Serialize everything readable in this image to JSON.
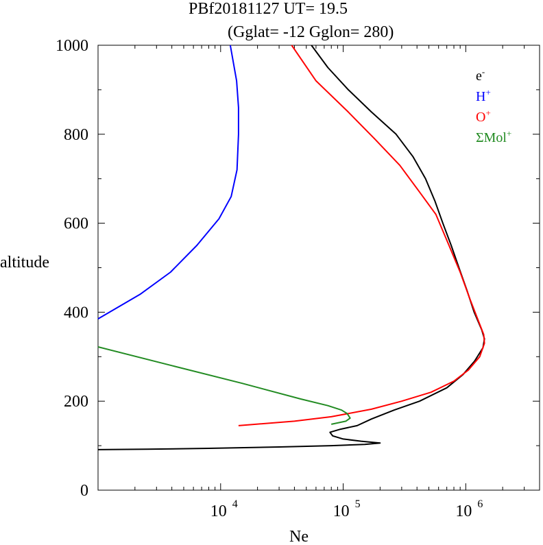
{
  "chart_data": {
    "type": "line",
    "title": "PBf20181127   UT=  19.5",
    "subtitle": "(Gglat= -12   Gglon=  280)",
    "xlabel": "Ne",
    "ylabel": "altitude",
    "x_scale": "log",
    "xlim": [
      1000,
      4000000
    ],
    "ylim": [
      0,
      1000
    ],
    "y_ticks": [
      0,
      200,
      400,
      600,
      800,
      1000
    ],
    "x_ticks": [
      {
        "value": 10000,
        "base": "10",
        "exp": "4"
      },
      {
        "value": 100000,
        "base": "10",
        "exp": "5"
      },
      {
        "value": 1000000,
        "base": "10",
        "exp": "6"
      }
    ],
    "grid": false,
    "legend_position": "top-right",
    "series": [
      {
        "name_base": "e",
        "name_sup": "-",
        "color": "#000000",
        "points": [
          [
            55000,
            1000
          ],
          [
            75000,
            950
          ],
          [
            110000,
            900
          ],
          [
            170000,
            850
          ],
          [
            270000,
            800
          ],
          [
            370000,
            750
          ],
          [
            470000,
            700
          ],
          [
            560000,
            650
          ],
          [
            650000,
            600
          ],
          [
            760000,
            550
          ],
          [
            880000,
            500
          ],
          [
            1020000,
            450
          ],
          [
            1170000,
            400
          ],
          [
            1350000,
            360
          ],
          [
            1420000,
            340
          ],
          [
            1380000,
            320
          ],
          [
            1180000,
            290
          ],
          [
            950000,
            260
          ],
          [
            700000,
            230
          ],
          [
            420000,
            200
          ],
          [
            260000,
            180
          ],
          [
            170000,
            160
          ],
          [
            130000,
            145
          ],
          [
            95000,
            137
          ],
          [
            78000,
            130
          ],
          [
            82000,
            122
          ],
          [
            100000,
            115
          ],
          [
            140000,
            110
          ],
          [
            200000,
            106
          ],
          [
            150000,
            103
          ],
          [
            80000,
            100
          ],
          [
            30000,
            97
          ],
          [
            8000,
            94
          ],
          [
            2500,
            92
          ],
          [
            1000,
            91
          ]
        ]
      },
      {
        "name_base": "H",
        "name_sup": "+",
        "color": "#0000ff",
        "points": [
          [
            12000,
            1000
          ],
          [
            13500,
            920
          ],
          [
            14000,
            860
          ],
          [
            14000,
            800
          ],
          [
            13600,
            720
          ],
          [
            12200,
            660
          ],
          [
            9700,
            610
          ],
          [
            6400,
            550
          ],
          [
            3900,
            490
          ],
          [
            2200,
            440
          ],
          [
            1000,
            385
          ]
        ]
      },
      {
        "name_base": "O",
        "name_sup": "+",
        "color": "#ff0000",
        "points": [
          [
            38000,
            1000
          ],
          [
            60000,
            920
          ],
          [
            110000,
            850
          ],
          [
            180000,
            790
          ],
          [
            290000,
            730
          ],
          [
            420000,
            670
          ],
          [
            570000,
            620
          ],
          [
            730000,
            550
          ],
          [
            900000,
            490
          ],
          [
            1080000,
            430
          ],
          [
            1270000,
            380
          ],
          [
            1400000,
            350
          ],
          [
            1420000,
            330
          ],
          [
            1300000,
            300
          ],
          [
            1050000,
            270
          ],
          [
            800000,
            245
          ],
          [
            520000,
            220
          ],
          [
            300000,
            200
          ],
          [
            170000,
            182
          ],
          [
            80000,
            165
          ],
          [
            40000,
            155
          ],
          [
            14000,
            145
          ]
        ]
      },
      {
        "name_base": "ΣMol",
        "name_sup": "+",
        "color": "#228b22",
        "points": [
          [
            1000,
            322
          ],
          [
            4000,
            280
          ],
          [
            15000,
            240
          ],
          [
            45000,
            205
          ],
          [
            75000,
            190
          ],
          [
            97000,
            180
          ],
          [
            108000,
            172
          ],
          [
            114000,
            162
          ],
          [
            105000,
            155
          ],
          [
            80000,
            148
          ]
        ]
      }
    ]
  }
}
